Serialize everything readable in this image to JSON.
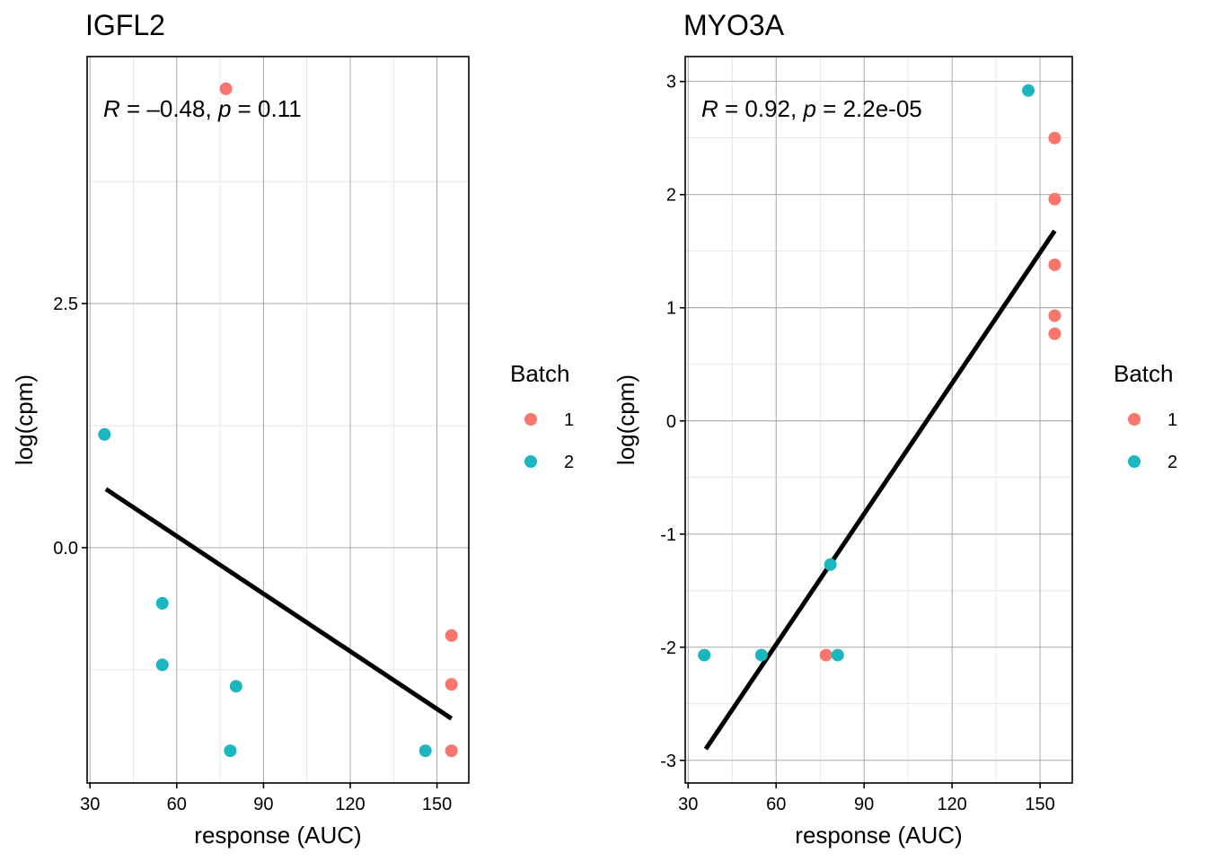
{
  "colors": {
    "batch_1": "#F8766D",
    "batch_2": "#1BB6BE"
  },
  "chart_data": [
    {
      "type": "scatter",
      "title": "IGFL2",
      "xlabel": "response (AUC)",
      "ylabel": "log(cpm)",
      "annotation": {
        "r_symbol": "R",
        "r_value": " = –0.48, ",
        "p_symbol": "p",
        "p_value": " = 0.11"
      },
      "xlim": [
        29,
        161
      ],
      "ylim": [
        -2.41,
        5.03
      ],
      "xticks": [
        30,
        60,
        90,
        120,
        150
      ],
      "xtick_labels": [
        "30",
        "60",
        "90",
        "120",
        "150"
      ],
      "yticks": [
        0.0,
        2.5
      ],
      "ytick_labels": [
        "0.0",
        "2.5"
      ],
      "ygrid_minor": [
        -1.25,
        1.25,
        3.75
      ],
      "grid": true,
      "series": [
        {
          "name": "1",
          "points": [
            [
              77,
              4.7
            ],
            [
              155,
              -0.9
            ],
            [
              155,
              -1.4
            ],
            [
              155,
              -2.08
            ]
          ]
        },
        {
          "name": "2",
          "points": [
            [
              35,
              1.16
            ],
            [
              55,
              -0.57
            ],
            [
              55,
              -1.2
            ],
            [
              80.5,
              -1.42
            ],
            [
              78.5,
              -2.08
            ],
            [
              146,
              -2.08
            ]
          ]
        }
      ],
      "fit_line": [
        [
          35.5,
          0.6
        ],
        [
          155,
          -1.75
        ]
      ],
      "legend": {
        "title": "Batch",
        "entries": [
          "1",
          "2"
        ],
        "position": "right"
      }
    },
    {
      "type": "scatter",
      "title": "MYO3A",
      "xlabel": "response (AUC)",
      "ylabel": "log(cpm)",
      "annotation": {
        "r_symbol": "R",
        "r_value": " = 0.92, ",
        "p_symbol": "p",
        "p_value": " = 2.2e-05"
      },
      "xlim": [
        29,
        161
      ],
      "ylim": [
        -3.2,
        3.22
      ],
      "xticks": [
        30,
        60,
        90,
        120,
        150
      ],
      "xtick_labels": [
        "30",
        "60",
        "90",
        "120",
        "150"
      ],
      "yticks": [
        -3,
        -2,
        -1,
        0,
        1,
        2,
        3
      ],
      "ytick_labels": [
        "-3",
        "-2",
        "-1",
        "0",
        "1",
        "2",
        "3"
      ],
      "ygrid_minor": [
        -2.5,
        -1.5,
        -0.5,
        0.5,
        1.5,
        2.5
      ],
      "grid": true,
      "series": [
        {
          "name": "1",
          "points": [
            [
              155,
              2.5
            ],
            [
              155,
              1.96
            ],
            [
              155,
              1.38
            ],
            [
              155,
              0.93
            ],
            [
              155,
              0.77
            ],
            [
              77,
              -2.07
            ]
          ]
        },
        {
          "name": "2",
          "points": [
            [
              146,
              2.92
            ],
            [
              78.5,
              -1.27
            ],
            [
              35.5,
              -2.07
            ],
            [
              55,
              -2.07
            ],
            [
              81,
              -2.07
            ]
          ]
        }
      ],
      "fit_line": [
        [
          36,
          -2.9
        ],
        [
          155,
          1.68
        ]
      ],
      "legend": {
        "title": "Batch",
        "entries": [
          "1",
          "2"
        ],
        "position": "right"
      }
    }
  ]
}
